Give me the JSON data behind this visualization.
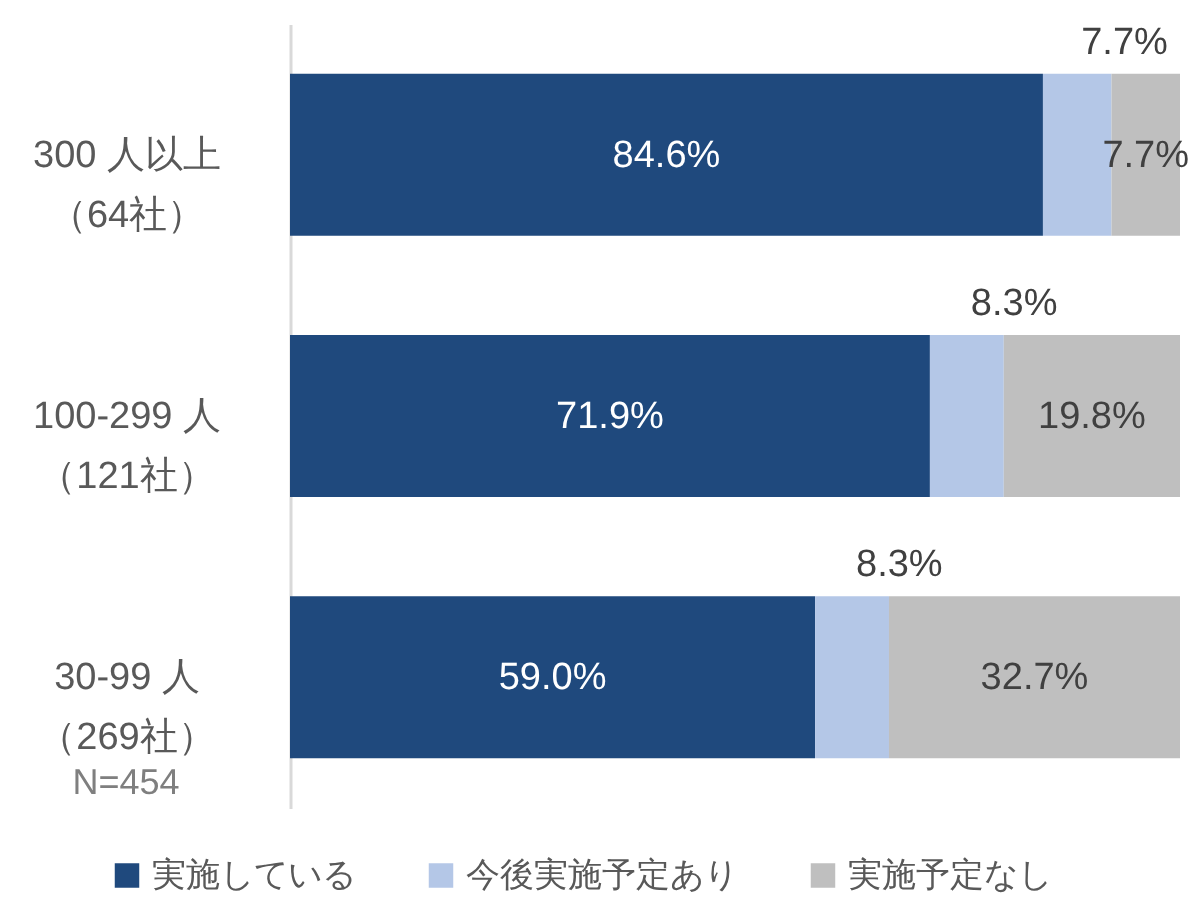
{
  "chart_data": {
    "type": "bar",
    "orientation": "horizontal",
    "stacked": true,
    "categories": [
      "300 人以上（64社）",
      "100-299 人（121社）",
      "30-99 人（269社）"
    ],
    "series": [
      {
        "name": "実施している",
        "color": "#1f497d",
        "values": [
          84.6,
          71.9,
          59.0
        ],
        "value_labels": [
          "84.6%",
          "71.9%",
          "59.0%"
        ]
      },
      {
        "name": "今後実施予定あり",
        "color": "#b4c7e7",
        "values": [
          7.7,
          8.3,
          8.3
        ],
        "value_labels": [
          "7.7%",
          "8.3%",
          "8.3%"
        ]
      },
      {
        "name": "実施予定なし",
        "color": "#bfbfbf",
        "values": [
          7.7,
          19.8,
          32.7
        ],
        "value_labels": [
          "7.7%",
          "19.8%",
          "32.7%"
        ]
      }
    ],
    "xlim": [
      0,
      100
    ],
    "tick_labels": "y",
    "legend": "bottom",
    "annotations": [
      "N=454"
    ]
  }
}
